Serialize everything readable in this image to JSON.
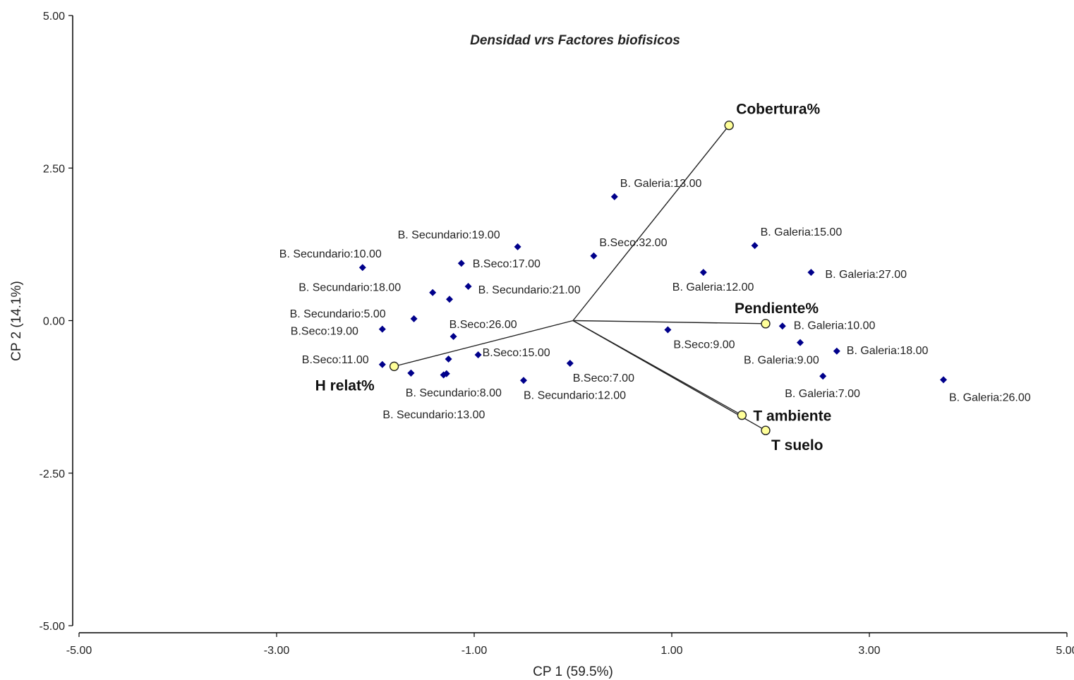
{
  "chart_data": {
    "type": "scatter",
    "title": "Densidad vrs Factores biofisicos",
    "xlabel": "CP 1 (59.5%)",
    "ylabel": "CP 2 (14.1%)",
    "xlim": [
      -5,
      5
    ],
    "ylim": [
      -5,
      5
    ],
    "xticks": [
      "-5.00",
      "-3.00",
      "-1.00",
      "1.00",
      "3.00",
      "5.00"
    ],
    "yticks": [
      "5.00",
      "2.50",
      "0.00",
      "-2.50",
      "-5.00"
    ],
    "grid": false,
    "point_color": "#00008B",
    "vector_point_color": "#FFFF99",
    "points": [
      {
        "label": "B. Galeria:13.00",
        "x": 0.42,
        "y": 2.03
      },
      {
        "label": "B. Galeria:15.00",
        "x": 1.84,
        "y": 1.23
      },
      {
        "label": "B. Galeria:27.00",
        "x": 2.41,
        "y": 0.79
      },
      {
        "label": "B. Galeria:12.00",
        "x": 1.32,
        "y": 0.79
      },
      {
        "label": "B.Seco:32.00",
        "x": 0.21,
        "y": 1.06
      },
      {
        "label": "B. Secundario:19.00",
        "x": -0.56,
        "y": 1.21
      },
      {
        "label": "B. Secundario:10.00",
        "x": -2.13,
        "y": 0.87
      },
      {
        "label": "B.Seco:17.00",
        "x": -1.13,
        "y": 0.94
      },
      {
        "label": "B. Secundario:18.00",
        "x": -1.42,
        "y": 0.46
      },
      {
        "label": "B. Secundario:21.00",
        "x": -1.06,
        "y": 0.56
      },
      {
        "label": "",
        "x": -1.25,
        "y": 0.35
      },
      {
        "label": "B. Secundario:5.00",
        "x": -1.61,
        "y": 0.03
      },
      {
        "label": "B.Seco:19.00",
        "x": -1.93,
        "y": -0.14
      },
      {
        "label": "B.Seco:26.00",
        "x": -1.21,
        "y": -0.26
      },
      {
        "label": "B. Galeria:10.00",
        "x": 2.12,
        "y": -0.09
      },
      {
        "label": "B.Seco:9.00",
        "x": 0.96,
        "y": -0.15
      },
      {
        "label": "B. Galeria:9.00",
        "x": 2.3,
        "y": -0.36
      },
      {
        "label": "B. Galeria:18.00",
        "x": 2.67,
        "y": -0.5
      },
      {
        "label": "B. Galeria:7.00",
        "x": 2.53,
        "y": -0.91
      },
      {
        "label": "B. Galeria:26.00",
        "x": 3.75,
        "y": -0.97
      },
      {
        "label": "B.Seco:11.00",
        "x": -1.93,
        "y": -0.72
      },
      {
        "label": "B.Seco:15.00",
        "x": -0.96,
        "y": -0.56
      },
      {
        "label": "B.Seco:7.00",
        "x": -0.03,
        "y": -0.7
      },
      {
        "label": "",
        "x": -1.26,
        "y": -0.63
      },
      {
        "label": "B. Secundario:8.00",
        "x": -1.28,
        "y": -0.87
      },
      {
        "label": "",
        "x": -1.31,
        "y": -0.89
      },
      {
        "label": "",
        "x": -1.64,
        "y": -0.86
      },
      {
        "label": "B. Secundario:13.00",
        "x": -1.64,
        "y": -0.86
      },
      {
        "label": "B. Secundario:12.00",
        "x": -0.5,
        "y": -0.98
      }
    ],
    "vectors": [
      {
        "label": "Cobertura%",
        "x": 1.58,
        "y": 3.2
      },
      {
        "label": "Pendiente%",
        "x": 1.95,
        "y": -0.05
      },
      {
        "label": "T ambiente",
        "x": 1.71,
        "y": -1.55
      },
      {
        "label": "T suelo",
        "x": 1.95,
        "y": -1.8
      },
      {
        "label": "H relat%",
        "x": -1.81,
        "y": -0.75
      }
    ]
  }
}
